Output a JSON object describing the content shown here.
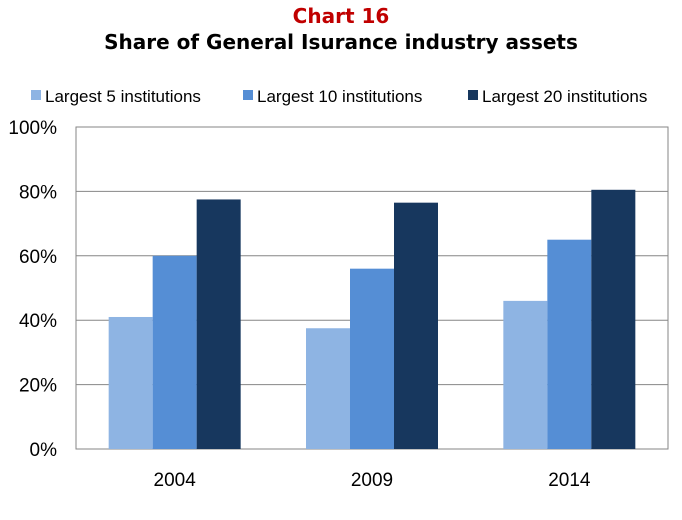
{
  "title": "Chart 16",
  "subtitle": "Share of General Isurance industry assets",
  "colors": {
    "title": "#c00000",
    "series": [
      "#8eb4e3",
      "#558ed5",
      "#17375e"
    ],
    "grid": "#868686"
  },
  "chart_data": {
    "type": "bar",
    "categories": [
      "2004",
      "2009",
      "2014"
    ],
    "series": [
      {
        "name": "Largest 5 institutions",
        "values": [
          41,
          37.5,
          46
        ]
      },
      {
        "name": "Largest 10 institutions",
        "values": [
          60,
          56,
          65
        ]
      },
      {
        "name": "Largest 20 institutions",
        "values": [
          77.5,
          76.5,
          80.5
        ]
      }
    ],
    "ylim": [
      0,
      100
    ],
    "yticks": [
      "0%",
      "20%",
      "40%",
      "60%",
      "80%",
      "100%"
    ],
    "grid": true,
    "legend_position": "top"
  }
}
